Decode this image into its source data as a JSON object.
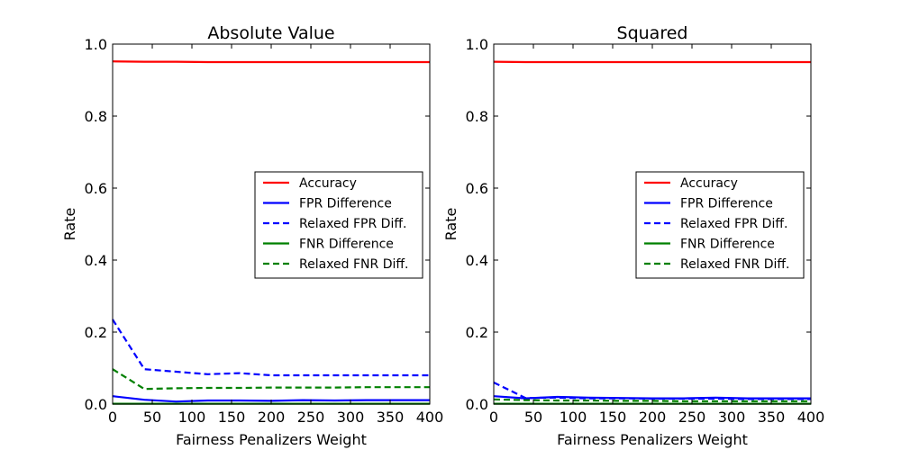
{
  "chart_data": [
    {
      "type": "line",
      "title": "Absolute Value",
      "xlabel": "Fairness Penalizers Weight",
      "ylabel": "Rate",
      "xlim": [
        0,
        400
      ],
      "ylim": [
        0,
        1.0
      ],
      "xticks": [
        "0",
        "50",
        "100",
        "150",
        "200",
        "250",
        "300",
        "350",
        "400"
      ],
      "yticks": [
        "0.0",
        "0.2",
        "0.4",
        "0.6",
        "0.8",
        "1.0"
      ],
      "grid": false,
      "legend_position": "center-right",
      "x": [
        0,
        40,
        80,
        120,
        160,
        200,
        240,
        280,
        320,
        360,
        400
      ],
      "series": [
        {
          "name": "Accuracy",
          "color": "#ff0000",
          "style": "solid",
          "values": [
            0.952,
            0.951,
            0.951,
            0.95,
            0.95,
            0.95,
            0.95,
            0.95,
            0.95,
            0.95,
            0.95
          ]
        },
        {
          "name": "FPR Difference",
          "color": "#0000ff",
          "style": "solid",
          "values": [
            0.022,
            0.012,
            0.007,
            0.01,
            0.01,
            0.009,
            0.011,
            0.01,
            0.011,
            0.011,
            0.011
          ]
        },
        {
          "name": "Relaxed FPR Diff.",
          "color": "#0000ff",
          "style": "dashed",
          "values": [
            0.235,
            0.097,
            0.09,
            0.083,
            0.086,
            0.08,
            0.08,
            0.08,
            0.08,
            0.08,
            0.08
          ]
        },
        {
          "name": "FNR Difference",
          "color": "#008000",
          "style": "solid",
          "values": [
            0.001,
            0.001,
            0.001,
            0.001,
            0.001,
            0.001,
            0.001,
            0.001,
            0.001,
            0.001,
            0.001
          ]
        },
        {
          "name": "Relaxed FNR Diff.",
          "color": "#008000",
          "style": "dashed",
          "values": [
            0.097,
            0.042,
            0.044,
            0.045,
            0.045,
            0.046,
            0.046,
            0.046,
            0.047,
            0.047,
            0.047
          ]
        }
      ]
    },
    {
      "type": "line",
      "title": "Squared",
      "xlabel": "Fairness Penalizers Weight",
      "ylabel": "Rate",
      "xlim": [
        0,
        400
      ],
      "ylim": [
        0,
        1.0
      ],
      "xticks": [
        "0",
        "50",
        "100",
        "150",
        "200",
        "250",
        "300",
        "350",
        "400"
      ],
      "yticks": [
        "0.0",
        "0.2",
        "0.4",
        "0.6",
        "0.8",
        "1.0"
      ],
      "grid": false,
      "legend_position": "center-right",
      "x": [
        0,
        40,
        80,
        120,
        160,
        200,
        240,
        280,
        320,
        360,
        400
      ],
      "series": [
        {
          "name": "Accuracy",
          "color": "#ff0000",
          "style": "solid",
          "values": [
            0.951,
            0.95,
            0.95,
            0.95,
            0.95,
            0.95,
            0.95,
            0.95,
            0.95,
            0.95,
            0.95
          ]
        },
        {
          "name": "FPR Difference",
          "color": "#0000ff",
          "style": "solid",
          "values": [
            0.022,
            0.016,
            0.02,
            0.018,
            0.017,
            0.016,
            0.016,
            0.018,
            0.016,
            0.016,
            0.016
          ]
        },
        {
          "name": "Relaxed FPR Diff.",
          "color": "#0000ff",
          "style": "dashed",
          "values": [
            0.06,
            0.017,
            0.018,
            0.016,
            0.016,
            0.015,
            0.015,
            0.015,
            0.014,
            0.014,
            0.014
          ]
        },
        {
          "name": "FNR Difference",
          "color": "#008000",
          "style": "solid",
          "values": [
            0.001,
            0.001,
            0.001,
            0.001,
            0.001,
            0.001,
            0.001,
            0.001,
            0.001,
            0.001,
            0.001
          ]
        },
        {
          "name": "Relaxed FNR Diff.",
          "color": "#008000",
          "style": "dashed",
          "values": [
            0.013,
            0.011,
            0.01,
            0.01,
            0.009,
            0.009,
            0.008,
            0.008,
            0.008,
            0.008,
            0.008
          ]
        }
      ]
    }
  ]
}
